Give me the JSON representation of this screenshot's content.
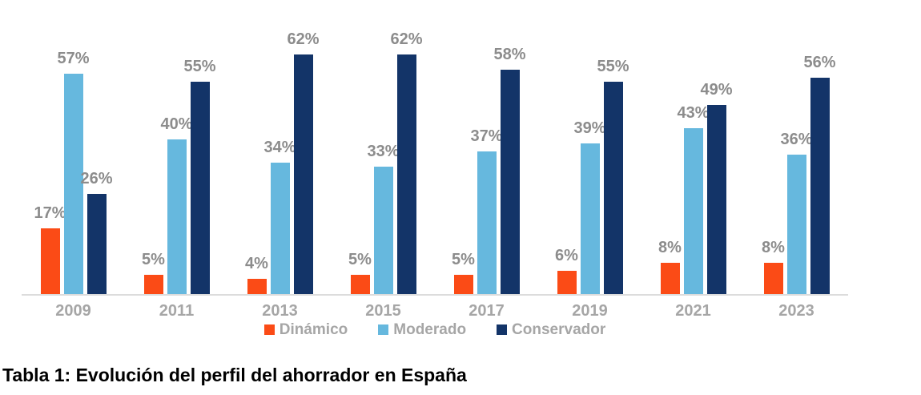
{
  "caption": "Tabla 1: Evolución del perfil del ahorrador en España",
  "chart_data": {
    "type": "bar",
    "title": "",
    "xlabel": "",
    "ylabel": "",
    "categories": [
      "2009",
      "2011",
      "2013",
      "2015",
      "2017",
      "2019",
      "2021",
      "2023"
    ],
    "series": [
      {
        "name": "Dinámico",
        "color": "#fb4b16",
        "values": [
          17,
          5,
          4,
          5,
          5,
          6,
          8,
          8
        ]
      },
      {
        "name": "Moderado",
        "color": "#66b8de",
        "values": [
          57,
          40,
          34,
          33,
          37,
          39,
          43,
          36
        ]
      },
      {
        "name": "Conservador",
        "color": "#133468",
        "values": [
          26,
          55,
          62,
          62,
          58,
          55,
          49,
          56
        ]
      }
    ],
    "value_suffix": "%",
    "data_labels": true,
    "ylim": [
      0,
      65
    ],
    "grid": false,
    "legend_position": "bottom",
    "axis_color": "#dcdcdc",
    "data_label_color": "#8c8c8c",
    "tick_label_color": "#a6a6a6",
    "legend_text_color": "#a6a6a6"
  }
}
